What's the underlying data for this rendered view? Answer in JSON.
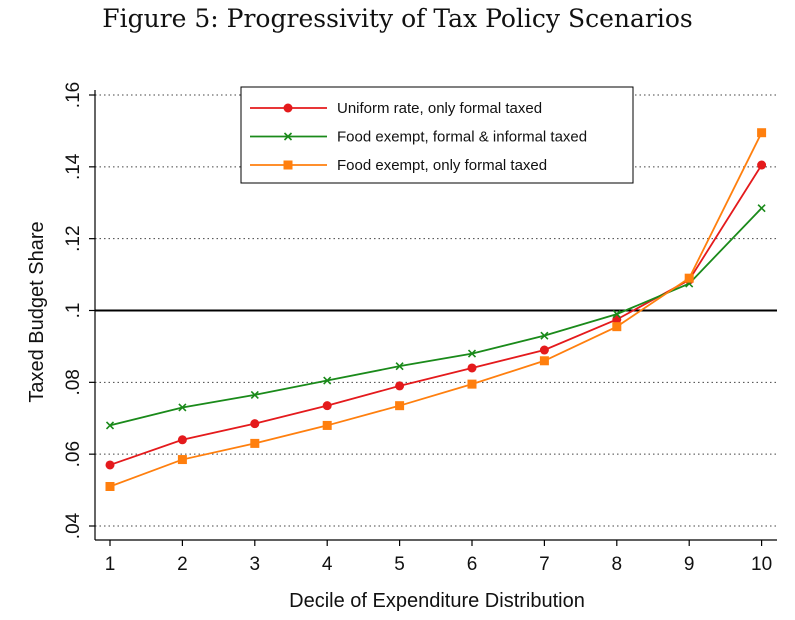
{
  "title": "Figure 5: Progressivity of Tax Policy Scenarios",
  "chart_data": {
    "type": "line",
    "title": "Figure 5: Progressivity of Tax Policy Scenarios",
    "xlabel": "Decile of Expenditure Distribution",
    "ylabel": "Taxed Budget Share",
    "x": [
      1,
      2,
      3,
      4,
      5,
      6,
      7,
      8,
      9,
      10
    ],
    "xticks": [
      "1",
      "2",
      "3",
      "4",
      "5",
      "6",
      "7",
      "8",
      "9",
      "10"
    ],
    "ylim": [
      0.04,
      0.16
    ],
    "yticks": [
      0.04,
      0.06,
      0.08,
      0.1,
      0.12,
      0.14,
      0.16
    ],
    "ytick_labels": [
      ".04",
      ".06",
      ".08",
      ".1",
      ".12",
      ".14",
      ".16"
    ],
    "reference_line": 0.1,
    "grid": "dotted horizontal",
    "legend_position": "top-center",
    "series": [
      {
        "name": "Uniform rate, only formal taxed",
        "color": "#e41a1c",
        "marker": "circle",
        "values": [
          0.057,
          0.064,
          0.0685,
          0.0735,
          0.079,
          0.084,
          0.089,
          0.0975,
          0.1085,
          0.1405
        ]
      },
      {
        "name": "Food exempt, formal & informal taxed",
        "color": "#1a8a1a",
        "marker": "x",
        "values": [
          0.068,
          0.073,
          0.0765,
          0.0805,
          0.0845,
          0.088,
          0.093,
          0.099,
          0.1075,
          0.1285
        ]
      },
      {
        "name": "Food exempt, only formal taxed",
        "color": "#ff7f0e",
        "marker": "square",
        "values": [
          0.051,
          0.0585,
          0.063,
          0.068,
          0.0735,
          0.0795,
          0.086,
          0.0955,
          0.109,
          0.1495
        ]
      }
    ]
  }
}
